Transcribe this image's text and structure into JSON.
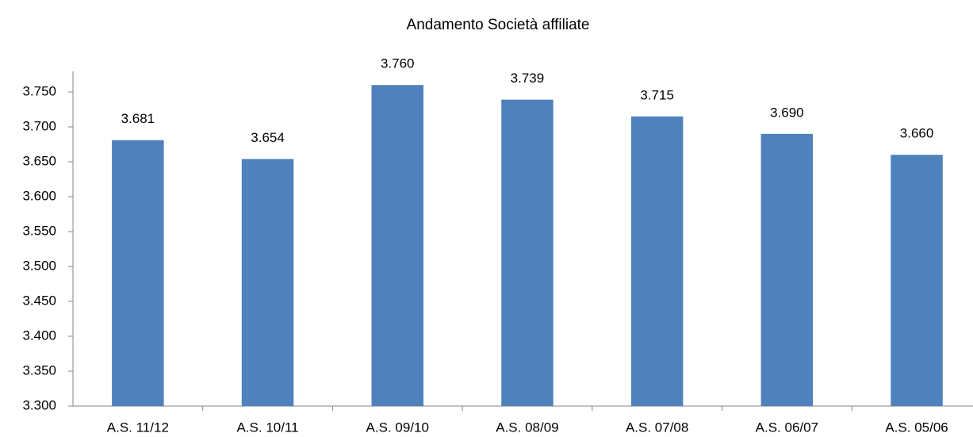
{
  "chart_data": {
    "type": "bar",
    "title": "Andamento Società affiliate",
    "categories": [
      "A.S. 11/12",
      "A.S. 10/11",
      "A.S. 09/10",
      "A.S. 08/09",
      "A.S. 07/08",
      "A.S. 06/07",
      "A.S. 05/06"
    ],
    "values": [
      3681,
      3654,
      3760,
      3739,
      3715,
      3690,
      3660
    ],
    "value_labels": [
      "3.681",
      "3.654",
      "3.760",
      "3.739",
      "3.715",
      "3.690",
      "3.660"
    ],
    "color": "#4f81bd",
    "ylim": [
      3300,
      3780
    ],
    "yticks": [
      {
        "value": 3300,
        "label": "3.300"
      },
      {
        "value": 3350,
        "label": "3.350"
      },
      {
        "value": 3400,
        "label": "3.400"
      },
      {
        "value": 3450,
        "label": "3.450"
      },
      {
        "value": 3500,
        "label": "3.500"
      },
      {
        "value": 3550,
        "label": "3.550"
      },
      {
        "value": 3600,
        "label": "3.600"
      },
      {
        "value": 3650,
        "label": "3.650"
      },
      {
        "value": 3700,
        "label": "3.700"
      },
      {
        "value": 3750,
        "label": "3.750"
      }
    ],
    "grid": false
  }
}
